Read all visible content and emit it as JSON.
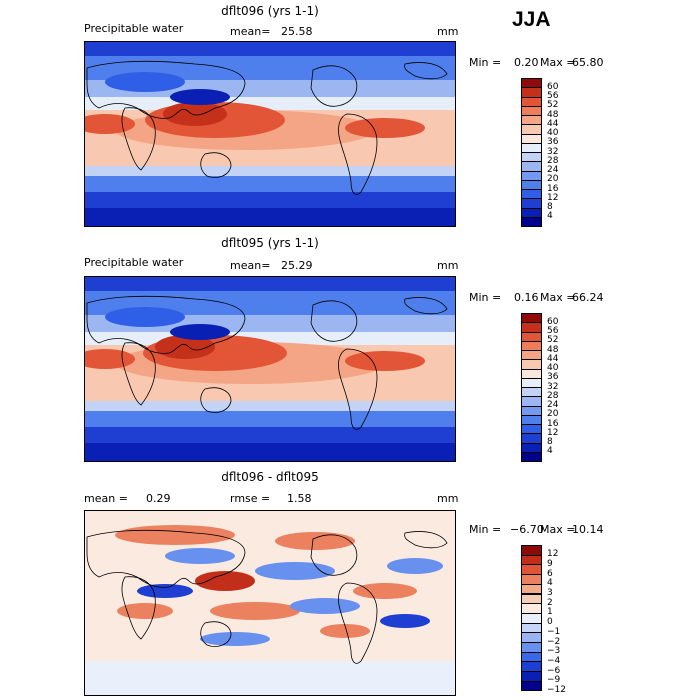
{
  "season": "JJA",
  "colors": {
    "abs_scale": [
      "#00008c",
      "#0a1fb4",
      "#1e3fd2",
      "#2f5fe6",
      "#4f7fec",
      "#7399f0",
      "#9cb6f2",
      "#c3d3f5",
      "#e6eefa",
      "#fbe7dc",
      "#f8c8b0",
      "#f4a585",
      "#ee7d5c",
      "#e25536",
      "#c4301a",
      "#8f0a0a"
    ],
    "diff_scale": [
      "#00008c",
      "#0a1fb4",
      "#1e3fd2",
      "#3a68e8",
      "#6890ee",
      "#9ab4f3",
      "#c5d6f7",
      "#e9f0fb",
      "#fbeae0",
      "#f7cdb5",
      "#f3ab8c",
      "#ec815f",
      "#df5535",
      "#c12f1a",
      "#8b0a0a"
    ]
  },
  "panels": [
    {
      "title": "dflt096 (yrs 1-1)",
      "left_label": "Precipitable water",
      "mean_label": "mean=",
      "mean_value": "25.58",
      "units": "mm",
      "min_label": "Min =",
      "min_value": "0.20",
      "max_label": "Max =",
      "max_value": "65.80",
      "ticks": [
        "60",
        "56",
        "52",
        "48",
        "44",
        "40",
        "36",
        "32",
        "28",
        "24",
        "20",
        "16",
        "12",
        "8",
        "4"
      ]
    },
    {
      "title": "dflt095 (yrs 1-1)",
      "left_label": "Precipitable water",
      "mean_label": "mean=",
      "mean_value": "25.29",
      "units": "mm",
      "min_label": "Min =",
      "min_value": "0.16",
      "max_label": "Max =",
      "max_value": "66.24",
      "ticks": [
        "60",
        "56",
        "52",
        "48",
        "44",
        "40",
        "36",
        "32",
        "28",
        "24",
        "20",
        "16",
        "12",
        "8",
        "4"
      ]
    },
    {
      "title": "dflt096 - dflt095",
      "left_label": "mean =",
      "left_value": "0.29",
      "mean_label": "rmse =",
      "mean_value": "1.58",
      "units": "mm",
      "min_label": "Min =",
      "min_value": "−6.70",
      "max_label": "Max =",
      "max_value": "10.14",
      "ticks": [
        "12",
        "9",
        "6",
        "4",
        "3",
        "2",
        "1",
        "0",
        "−1",
        "−2",
        "−3",
        "−4",
        "−6",
        "−9",
        "−12"
      ]
    }
  ]
}
